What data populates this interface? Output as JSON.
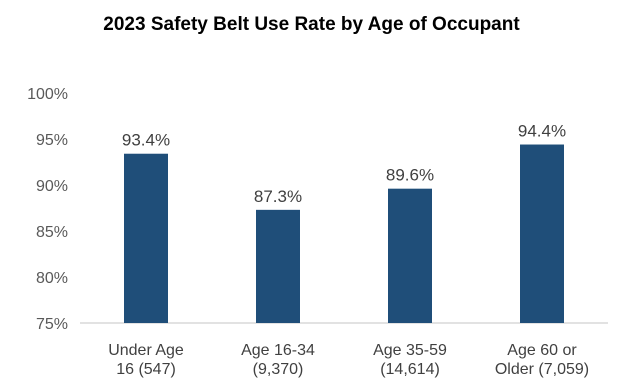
{
  "chart_data": {
    "type": "bar",
    "title": "2023 Safety Belt Use Rate by Age of Occupant",
    "categories": [
      [
        "Under Age",
        "16 (547)"
      ],
      [
        "Age 16-34",
        "(9,370)"
      ],
      [
        "Age 35-59",
        "(14,614)"
      ],
      [
        "Age 60 or",
        "Older (7,059)"
      ]
    ],
    "values": [
      93.4,
      87.3,
      89.6,
      94.4
    ],
    "data_labels": [
      "93.4%",
      "87.3%",
      "89.6%",
      "94.4%"
    ],
    "ylim": [
      75,
      100
    ],
    "yticks": [
      75,
      80,
      85,
      90,
      95,
      100
    ],
    "ytick_labels": [
      "75%",
      "80%",
      "85%",
      "90%",
      "95%",
      "100%"
    ],
    "bar_color": "#1f4e79",
    "axis_color": "#d9d9d9",
    "grid": false,
    "legend": "none"
  }
}
